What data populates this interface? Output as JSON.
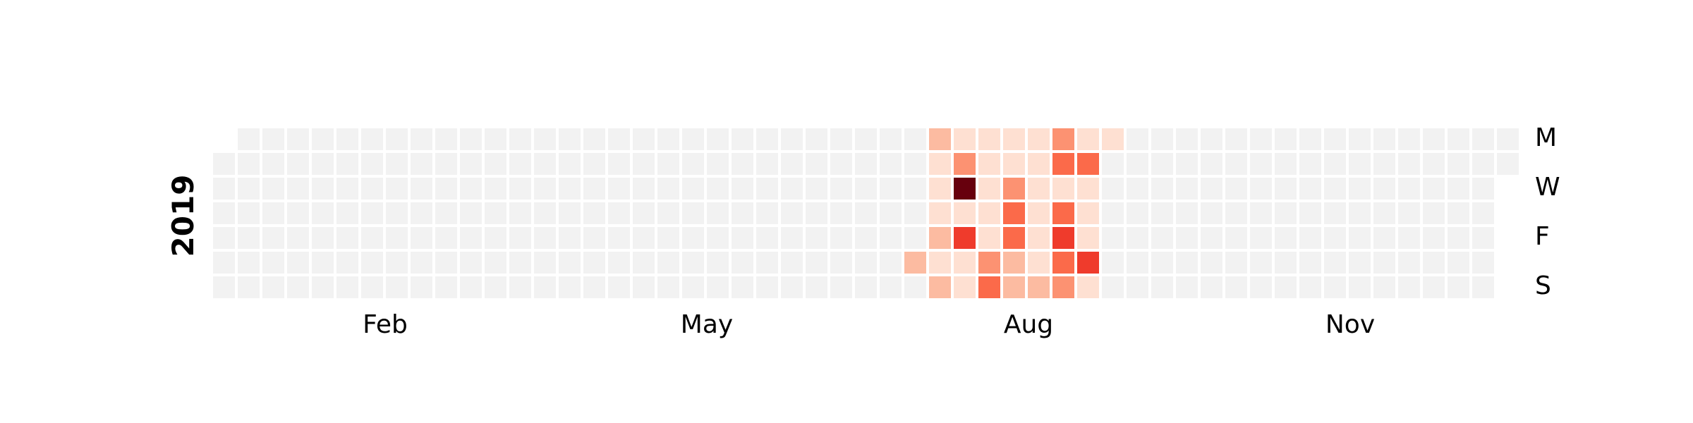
{
  "chart_data": {
    "type": "heatmap",
    "title": "",
    "year_label": "2019",
    "start_date": "2019-01-01",
    "end_date": "2019-12-31",
    "weekday_labels": [
      "M",
      "W",
      "F",
      "S"
    ],
    "month_labels": [
      "Feb",
      "May",
      "Aug",
      "Nov"
    ],
    "grid": false,
    "colors": {
      "empty": "#f2f2f2",
      "scale": [
        "#fff5f0",
        "#fee0d2",
        "#fcbba1",
        "#fc9272",
        "#fb6a4a",
        "#ef3b2c",
        "#cb181d",
        "#67000d"
      ]
    },
    "values": {
      "2019-07-20": 3,
      "2019-07-22": 3,
      "2019-07-23": 1,
      "2019-07-24": 2,
      "2019-07-25": 1,
      "2019-07-26": 3,
      "2019-07-27": 1,
      "2019-07-28": 3,
      "2019-07-29": 2,
      "2019-07-30": 4,
      "2019-07-31": 10,
      "2019-08-01": 1,
      "2019-08-02": 7,
      "2019-08-03": 1,
      "2019-08-04": 1,
      "2019-08-05": 1,
      "2019-08-06": 1,
      "2019-08-07": 1,
      "2019-08-08": 1,
      "2019-08-09": 1,
      "2019-08-10": 4,
      "2019-08-11": 5,
      "2019-08-12": 2,
      "2019-08-13": 1,
      "2019-08-14": 4,
      "2019-08-15": 5,
      "2019-08-16": 5,
      "2019-08-17": 3,
      "2019-08-18": 3,
      "2019-08-19": 2,
      "2019-08-20": 1,
      "2019-08-21": 1,
      "2019-08-22": 2,
      "2019-08-23": 1,
      "2019-08-24": 1,
      "2019-08-25": 3,
      "2019-08-26": 4,
      "2019-08-27": 5,
      "2019-08-28": 2,
      "2019-08-29": 5,
      "2019-08-30": 7,
      "2019-08-31": 6,
      "2019-09-01": 4,
      "2019-09-02": 2,
      "2019-09-03": 5,
      "2019-09-04": 2,
      "2019-09-05": 2,
      "2019-09-06": 2,
      "2019-09-07": 7,
      "2019-09-08": 2,
      "2019-09-09": 2
    }
  }
}
